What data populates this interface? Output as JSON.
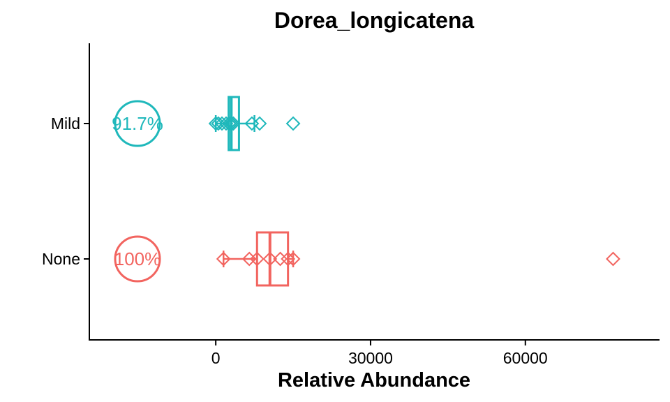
{
  "chart_data": {
    "type": "boxplot",
    "orientation": "horizontal",
    "title": "Dorea_longicatena",
    "xlabel": "Relative Abundance",
    "ylabel": "",
    "x_ticks": [
      0,
      30000,
      60000
    ],
    "x_tick_labels": [
      "0",
      "30000",
      "60000"
    ],
    "xlim": [
      -24500,
      86000
    ],
    "categories": [
      "Mild",
      "None"
    ],
    "grid": false,
    "legend": "none",
    "groups": [
      {
        "category": "Mild",
        "color": "#1fb8bb",
        "prevalence_label": "91.7%",
        "box": {
          "min": 0,
          "q1": 2500,
          "median": 3000,
          "q3": 4500,
          "max": 7500
        },
        "points": [
          0,
          500,
          1200,
          2000,
          2600,
          3000,
          3400,
          7000,
          8500,
          15000
        ]
      },
      {
        "category": "None",
        "color": "#f2645f",
        "prevalence_label": "100%",
        "box": {
          "min": 1500,
          "q1": 8000,
          "median": 10500,
          "q3": 14000,
          "max": 15000
        },
        "points": [
          1500,
          6500,
          8000,
          10500,
          12500,
          14000,
          15000,
          77000
        ]
      }
    ]
  }
}
